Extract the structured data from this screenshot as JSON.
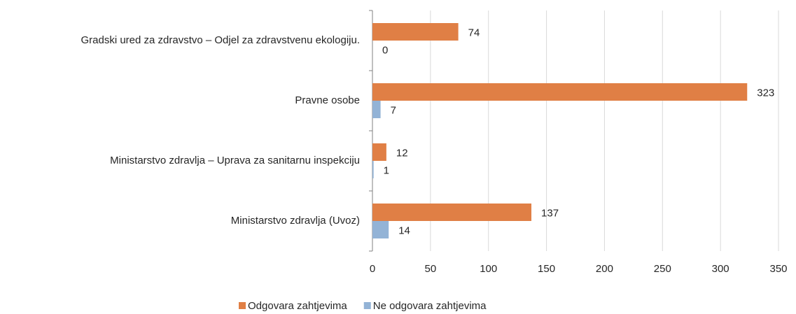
{
  "chart_data": {
    "type": "bar",
    "orientation": "horizontal",
    "categories": [
      "Gradski ured za zdravstvo – Odjel za zdravstvenu ekologiju.",
      "Pravne osobe",
      "Ministarstvo zdravlja – Uprava za sanitarnu inspekciju",
      "Ministarstvo zdravlja (Uvoz)"
    ],
    "series": [
      {
        "name": "Odgovara zahtjevima",
        "color": "#e07f45",
        "values": [
          74,
          323,
          12,
          137
        ]
      },
      {
        "name": "Ne odgovara zahtjevima",
        "color": "#93b3d6",
        "values": [
          0,
          7,
          1,
          14
        ]
      }
    ],
    "xlim": [
      0,
      350
    ],
    "xticks": [
      0,
      50,
      100,
      150,
      200,
      250,
      300,
      350
    ],
    "grid": true,
    "legend": "bottom"
  }
}
